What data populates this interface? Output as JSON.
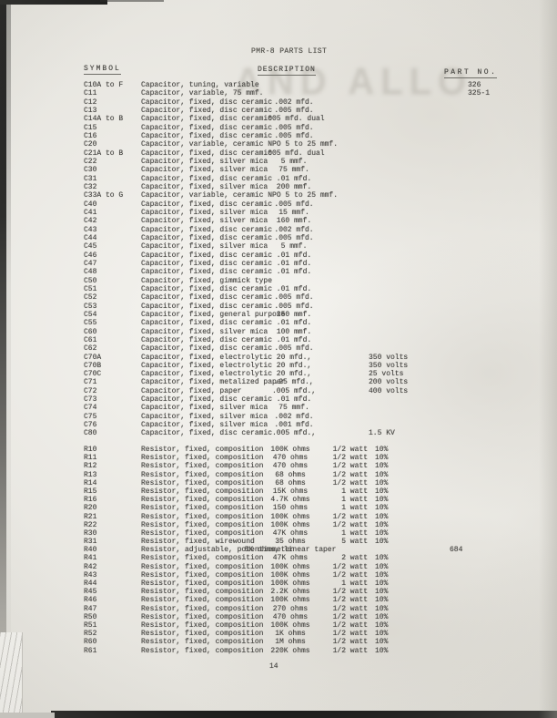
{
  "page": {
    "title": "PMR-8 PARTS LIST",
    "watermark_bleed_text": "AND ALLO",
    "page_number": "14",
    "colors": {
      "paper": "#e9e7e2",
      "ink": "#4b4a47",
      "scan_edge": "#1b1b1a"
    }
  },
  "headers": {
    "symbol": "SYMBOL",
    "description": "DESCRIPTION",
    "part_no": "PART NO."
  },
  "capacitors": [
    {
      "sym": "C10A to F",
      "desc": "Capacitor, tuning, variable",
      "value": "",
      "volts": "",
      "part": "326"
    },
    {
      "sym": "C11",
      "desc": "Capacitor, variable, 75 mmf.",
      "value": "",
      "volts": "",
      "part": "325-1"
    },
    {
      "sym": "C12",
      "desc": "Capacitor, fixed, disc ceramic",
      "value": ".002 mfd.",
      "volts": "",
      "part": ""
    },
    {
      "sym": "C13",
      "desc": "Capacitor, fixed, disc ceramic",
      "value": ".005 mfd.",
      "volts": "",
      "part": ""
    },
    {
      "sym": "C14A to B",
      "desc": "Capacitor, fixed, disc ceramic",
      "value": ".005 mfd. dual",
      "volts": "",
      "part": ""
    },
    {
      "sym": "C15",
      "desc": "Capacitor, fixed, disc ceramic",
      "value": ".005 mfd.",
      "volts": "",
      "part": ""
    },
    {
      "sym": "C16",
      "desc": "Capacitor, fixed, disc ceramic",
      "value": ".005 mfd.",
      "volts": "",
      "part": ""
    },
    {
      "sym": "C20",
      "desc": "Capacitor, variable, ceramic NPO 5 to 25 mmf.",
      "value": "",
      "volts": "",
      "part": ""
    },
    {
      "sym": "C21A to B",
      "desc": "Capacitor, fixed, disc ceramic",
      "value": ".005 mfd. dual",
      "volts": "",
      "part": ""
    },
    {
      "sym": "C22",
      "desc": "Capacitor, fixed, silver mica",
      "value": "5 mmf.",
      "volts": "",
      "part": ""
    },
    {
      "sym": "C30",
      "desc": "Capacitor, fixed, silver mica",
      "value": "75 mmf.",
      "volts": "",
      "part": ""
    },
    {
      "sym": "C31",
      "desc": "Capacitor, fixed, disc ceramic",
      "value": ".01 mfd.",
      "volts": "",
      "part": ""
    },
    {
      "sym": "C32",
      "desc": "Capacitor, fixed, silver mica",
      "value": "200 mmf.",
      "volts": "",
      "part": ""
    },
    {
      "sym": "C33A to G",
      "desc": "Capacitor, variable, ceramic NPO 5 to 25 mmf.",
      "value": "",
      "volts": "",
      "part": ""
    },
    {
      "sym": "C40",
      "desc": "Capacitor, fixed, disc ceramic",
      "value": ".005 mfd.",
      "volts": "",
      "part": ""
    },
    {
      "sym": "C41",
      "desc": "Capacitor, fixed, silver mica",
      "value": "15 mmf.",
      "volts": "",
      "part": ""
    },
    {
      "sym": "C42",
      "desc": "Capacitor, fixed, silver mica",
      "value": "160 mmf.",
      "volts": "",
      "part": ""
    },
    {
      "sym": "C43",
      "desc": "Capacitor, fixed, disc ceramic",
      "value": ".002 mfd.",
      "volts": "",
      "part": ""
    },
    {
      "sym": "C44",
      "desc": "Capacitor, fixed, disc ceramic",
      "value": ".005 mfd.",
      "volts": "",
      "part": ""
    },
    {
      "sym": "C45",
      "desc": "Capacitor, fixed, silver mica",
      "value": "5 mmf.",
      "volts": "",
      "part": ""
    },
    {
      "sym": "C46",
      "desc": "Capacitor, fixed, disc ceramic",
      "value": ".01 mfd.",
      "volts": "",
      "part": ""
    },
    {
      "sym": "C47",
      "desc": "Capacitor, fixed, disc ceramic",
      "value": ".01 mfd.",
      "volts": "",
      "part": ""
    },
    {
      "sym": "C48",
      "desc": "Capacitor, fixed, disc ceramic",
      "value": ".01 mfd.",
      "volts": "",
      "part": ""
    },
    {
      "sym": "C50",
      "desc": "Capacitor, fixed, gimmick type",
      "value": "",
      "volts": "",
      "part": ""
    },
    {
      "sym": "C51",
      "desc": "Capacitor, fixed, disc ceramic",
      "value": ".01 mfd.",
      "volts": "",
      "part": ""
    },
    {
      "sym": "C52",
      "desc": "Capacitor, fixed, disc ceramic",
      "value": ".005 mfd.",
      "volts": "",
      "part": ""
    },
    {
      "sym": "C53",
      "desc": "Capacitor, fixed, disc ceramic",
      "value": ".005 mfd.",
      "volts": "",
      "part": ""
    },
    {
      "sym": "C54",
      "desc": "Capacitor, fixed, general purpose",
      "value": "250 mmf.",
      "volts": "",
      "part": ""
    },
    {
      "sym": "C55",
      "desc": "Capacitor, fixed, disc ceramic",
      "value": ".01 mfd.",
      "volts": "",
      "part": ""
    },
    {
      "sym": "C60",
      "desc": "Capacitor, fixed, silver mica",
      "value": "100 mmf.",
      "volts": "",
      "part": ""
    },
    {
      "sym": "C61",
      "desc": "Capacitor, fixed, disc ceramic",
      "value": ".01 mfd.",
      "volts": "",
      "part": ""
    },
    {
      "sym": "C62",
      "desc": "Capacitor, fixed, disc ceramic",
      "value": ".005 mfd.",
      "volts": "",
      "part": ""
    },
    {
      "sym": "C70A",
      "desc": "Capacitor, fixed, electrolytic",
      "value": "20 mfd.,",
      "volts": "350 volts",
      "part": ""
    },
    {
      "sym": "C70B",
      "desc": "Capacitor, fixed, electrolytic",
      "value": "20 mfd.,",
      "volts": "350 volts",
      "part": ""
    },
    {
      "sym": "C70C",
      "desc": "Capacitor, fixed, electrolytic",
      "value": "20 mfd.,",
      "volts": "25 volts",
      "part": ""
    },
    {
      "sym": "C71",
      "desc": "Capacitor, fixed, metalized paper",
      "value": ".25 mfd.,",
      "volts": "200 volts",
      "part": ""
    },
    {
      "sym": "C72",
      "desc": "Capacitor, fixed, paper",
      "value": ".005 mfd.,",
      "volts": "400 volts",
      "part": ""
    },
    {
      "sym": "C73",
      "desc": "Capacitor, fixed, disc ceramic",
      "value": ".01 mfd.",
      "volts": "",
      "part": ""
    },
    {
      "sym": "C74",
      "desc": "Capacitor, fixed, silver mica",
      "value": "75 mmf.",
      "volts": "",
      "part": ""
    },
    {
      "sym": "C75",
      "desc": "Capacitor, fixed, silver mica",
      "value": ".002 mfd.",
      "volts": "",
      "part": ""
    },
    {
      "sym": "C76",
      "desc": "Capacitor, fixed, silver mica",
      "value": ".001 mfd.",
      "volts": "",
      "part": ""
    },
    {
      "sym": "C80",
      "desc": "Capacitor, fixed, disc ceramic",
      "value": ".005 mfd.,",
      "volts": "1.5 KV",
      "part": ""
    }
  ],
  "resistors": [
    {
      "sym": "R10",
      "desc": "Resistor, fixed, composition",
      "ohms": "100K ohms",
      "watt": "1/2 watt",
      "tol": "10%",
      "part": ""
    },
    {
      "sym": "R11",
      "desc": "Resistor, fixed, composition",
      "ohms": "470 ohms",
      "watt": "1/2 watt",
      "tol": "10%",
      "part": ""
    },
    {
      "sym": "R12",
      "desc": "Resistor, fixed, composition",
      "ohms": "470 ohms",
      "watt": "1/2 watt",
      "tol": "10%",
      "part": ""
    },
    {
      "sym": "R13",
      "desc": "Resistor, fixed, composition",
      "ohms": "68 ohms",
      "watt": "1/2 watt",
      "tol": "10%",
      "part": ""
    },
    {
      "sym": "R14",
      "desc": "Resistor, fixed, composition",
      "ohms": "68 ohms",
      "watt": "1/2 watt",
      "tol": "10%",
      "part": ""
    },
    {
      "sym": "R15",
      "desc": "Resistor, fixed, composition",
      "ohms": "15K ohms",
      "watt": "1 watt",
      "tol": "10%",
      "part": ""
    },
    {
      "sym": "R16",
      "desc": "Resistor, fixed, composition",
      "ohms": "4.7K ohms",
      "watt": "1 watt",
      "tol": "10%",
      "part": ""
    },
    {
      "sym": "R20",
      "desc": "Resistor, fixed, composition",
      "ohms": "150 ohms",
      "watt": "1 watt",
      "tol": "10%",
      "part": ""
    },
    {
      "sym": "R21",
      "desc": "Resistor, fixed, composition",
      "ohms": "100K ohms",
      "watt": "1/2 watt",
      "tol": "10%",
      "part": ""
    },
    {
      "sym": "R22",
      "desc": "Resistor, fixed, composition",
      "ohms": "100K ohms",
      "watt": "1/2 watt",
      "tol": "10%",
      "part": ""
    },
    {
      "sym": "R30",
      "desc": "Resistor, fixed, composition",
      "ohms": "47K ohms",
      "watt": "1 watt",
      "tol": "10%",
      "part": ""
    },
    {
      "sym": "R31",
      "desc": "Resistor, fixed, wirewound",
      "ohms": "35 ohms",
      "watt": "5 watt",
      "tol": "10%",
      "part": ""
    },
    {
      "sym": "R40",
      "desc": "Resistor, adjustable, potentiometer",
      "ohms": "5K ohms, linear taper",
      "watt": "",
      "tol": "",
      "part": "684"
    },
    {
      "sym": "R41",
      "desc": "Resistor, fixed, composition",
      "ohms": "47K ohms",
      "watt": "2 watt",
      "tol": "10%",
      "part": ""
    },
    {
      "sym": "R42",
      "desc": "Resistor, fixed, composition",
      "ohms": "100K ohms",
      "watt": "1/2 watt",
      "tol": "10%",
      "part": ""
    },
    {
      "sym": "R43",
      "desc": "Resistor, fixed, composition",
      "ohms": "100K ohms",
      "watt": "1/2 watt",
      "tol": "10%",
      "part": ""
    },
    {
      "sym": "R44",
      "desc": "Resistor, fixed, composition",
      "ohms": "100K ohms",
      "watt": "1 watt",
      "tol": "10%",
      "part": ""
    },
    {
      "sym": "R45",
      "desc": "Resistor, fixed, composition",
      "ohms": "2.2K ohms",
      "watt": "1/2 watt",
      "tol": "10%",
      "part": ""
    },
    {
      "sym": "R46",
      "desc": "Resistor, fixed, composition",
      "ohms": "100K ohms",
      "watt": "1/2 watt",
      "tol": "10%",
      "part": ""
    },
    {
      "sym": "R47",
      "desc": "Resistor, fixed, composition",
      "ohms": "270 ohms",
      "watt": "1/2 watt",
      "tol": "10%",
      "part": ""
    },
    {
      "sym": "R50",
      "desc": "Resistor, fixed, composition",
      "ohms": "470 ohms",
      "watt": "1/2 watt",
      "tol": "10%",
      "part": ""
    },
    {
      "sym": "R51",
      "desc": "Resistor, fixed, composition",
      "ohms": "100K ohms",
      "watt": "1/2 watt",
      "tol": "10%",
      "part": ""
    },
    {
      "sym": "R52",
      "desc": "Resistor, fixed, composition",
      "ohms": "1K ohms",
      "watt": "1/2 watt",
      "tol": "10%",
      "part": ""
    },
    {
      "sym": "R60",
      "desc": "Resistor, fixed, composition",
      "ohms": "1M ohms",
      "watt": "1/2 watt",
      "tol": "10%",
      "part": ""
    },
    {
      "sym": "R61",
      "desc": "Resistor, fixed, composition",
      "ohms": "220K ohms",
      "watt": "1/2 watt",
      "tol": "10%",
      "part": ""
    }
  ]
}
